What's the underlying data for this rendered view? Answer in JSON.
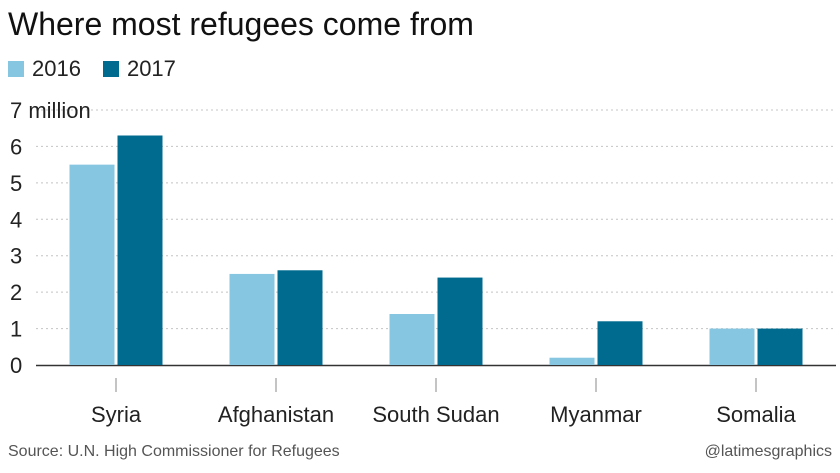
{
  "title": "Where most refugees come from",
  "legend": [
    {
      "label": "2016",
      "color": "#86c6e0"
    },
    {
      "label": "2017",
      "color": "#006b8f"
    }
  ],
  "chart_data": {
    "type": "bar",
    "categories": [
      "Syria",
      "Afghanistan",
      "South Sudan",
      "Myanmar",
      "Somalia"
    ],
    "series": [
      {
        "name": "2016",
        "color": "#86c6e0",
        "values": [
          5.5,
          2.5,
          1.4,
          0.2,
          1.0
        ]
      },
      {
        "name": "2017",
        "color": "#006b8f",
        "values": [
          6.3,
          2.6,
          2.4,
          1.2,
          1.0
        ]
      }
    ],
    "yticks": [
      {
        "value": 0,
        "label": "0"
      },
      {
        "value": 1,
        "label": "1"
      },
      {
        "value": 2,
        "label": "2"
      },
      {
        "value": 3,
        "label": "3"
      },
      {
        "value": 4,
        "label": "4"
      },
      {
        "value": 5,
        "label": "5"
      },
      {
        "value": 6,
        "label": "6"
      },
      {
        "value": 7,
        "label": "7 million"
      }
    ],
    "ylim": [
      0,
      7
    ],
    "grid": true,
    "legend_position": "top-left"
  },
  "footer": {
    "source": "Source: U.N. High Commissioner for Refugees",
    "credit": "@latimesgraphics"
  }
}
